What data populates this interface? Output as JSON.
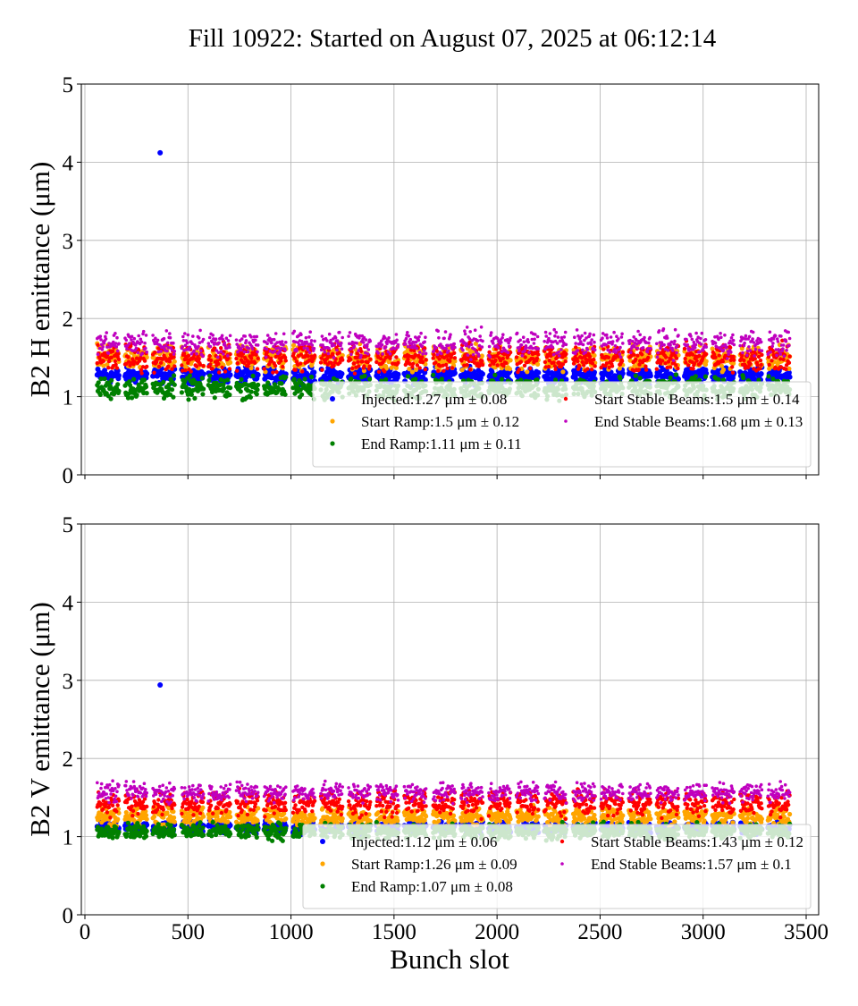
{
  "chart_data": {
    "type": "scatter",
    "title": "Fill 10922: Started on August 07, 2025 at 06:12:14",
    "xlabel": "Bunch slot",
    "xlim": [
      -10,
      3550
    ],
    "xticks": [
      "0",
      "500",
      "1000",
      "1500",
      "2000",
      "2500",
      "3000",
      "3500"
    ],
    "yticks": [
      "0",
      "1",
      "2",
      "3",
      "4",
      "5"
    ],
    "grid": true,
    "legend_placement": "lower-right",
    "trains": [
      [
        60,
        165
      ],
      [
        195,
        300
      ],
      [
        330,
        435
      ],
      [
        470,
        575
      ],
      [
        600,
        705
      ],
      [
        735,
        840
      ],
      [
        870,
        975
      ],
      [
        1010,
        1115
      ],
      [
        1145,
        1250
      ],
      [
        1280,
        1385
      ],
      [
        1415,
        1520
      ],
      [
        1550,
        1655
      ],
      [
        1690,
        1795
      ],
      [
        1825,
        1930
      ],
      [
        1960,
        2065
      ],
      [
        2095,
        2200
      ],
      [
        2230,
        2335
      ],
      [
        2370,
        2475
      ],
      [
        2505,
        2610
      ],
      [
        2640,
        2745
      ],
      [
        2775,
        2880
      ],
      [
        2910,
        3015
      ],
      [
        3045,
        3150
      ],
      [
        3180,
        3285
      ],
      [
        3315,
        3420
      ]
    ],
    "panels": [
      {
        "ylabel": "B2 H emittance (μm)",
        "ylim": [
          0,
          5
        ],
        "series": [
          {
            "name": "Injected",
            "label": "Injected:1.27 μm ± 0.08",
            "mean": 1.27,
            "std": 0.08,
            "color": "#0000ff",
            "outliers": [
              [
                365,
                4.12
              ]
            ]
          },
          {
            "name": "Start Ramp",
            "label": "Start Ramp:1.5 μm ± 0.12",
            "mean": 1.5,
            "std": 0.12,
            "color": "#ffa500",
            "outliers": []
          },
          {
            "name": "End Ramp",
            "label": "End Ramp:1.11 μm ± 0.11",
            "mean": 1.11,
            "std": 0.11,
            "color": "#008000",
            "outliers": []
          },
          {
            "name": "Start Stable Beams",
            "label": "Start Stable Beams:1.5 μm ± 0.14",
            "mean": 1.5,
            "std": 0.14,
            "color": "#ff0000",
            "outliers": []
          },
          {
            "name": "End Stable Beams",
            "label": "End Stable Beams:1.68 μm ± 0.13",
            "mean": 1.68,
            "std": 0.13,
            "color": "#bf00bf",
            "outliers": []
          }
        ]
      },
      {
        "ylabel": "B2 V emittance (μm)",
        "ylim": [
          0,
          5
        ],
        "series": [
          {
            "name": "Injected",
            "label": "Injected:1.12 μm ± 0.06",
            "mean": 1.12,
            "std": 0.06,
            "color": "#0000ff",
            "outliers": [
              [
                365,
                2.94
              ]
            ]
          },
          {
            "name": "Start Ramp",
            "label": "Start Ramp:1.26 μm ± 0.09",
            "mean": 1.26,
            "std": 0.09,
            "color": "#ffa500",
            "outliers": []
          },
          {
            "name": "End Ramp",
            "label": "End Ramp:1.07 μm ± 0.08",
            "mean": 1.07,
            "std": 0.08,
            "color": "#008000",
            "outliers": []
          },
          {
            "name": "Start Stable Beams",
            "label": "Start Stable Beams:1.43 μm ± 0.12",
            "mean": 1.43,
            "std": 0.12,
            "color": "#ff0000",
            "outliers": []
          },
          {
            "name": "End Stable Beams",
            "label": "End Stable Beams:1.57 μm ± 0.1",
            "mean": 1.57,
            "std": 0.1,
            "color": "#bf00bf",
            "outliers": []
          }
        ]
      }
    ]
  }
}
